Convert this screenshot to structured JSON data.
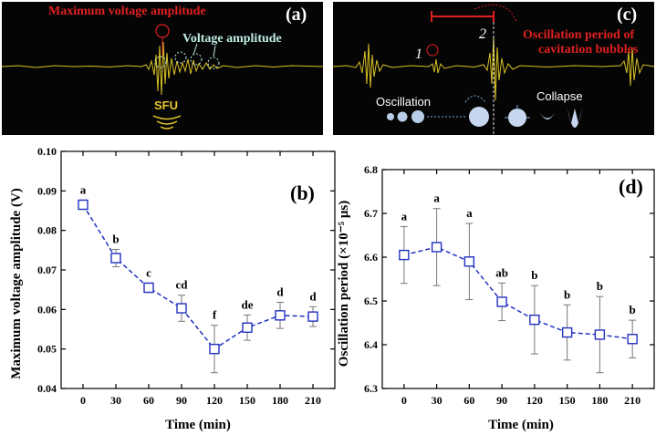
{
  "panel_a": {
    "label": "(a)",
    "annotation_max": "Maximum voltage amplitude",
    "annotation_amp": "Voltage amplitude",
    "annotation_sfu": "SFU"
  },
  "panel_c": {
    "label": "(c)",
    "marker_1": "1",
    "marker_2": "2",
    "annotation_period_line1": "Oscillation period of",
    "annotation_period_line2": "cavitation bubbles",
    "label_oscillation": "Oscillation",
    "label_collapse": "Collapse"
  },
  "chart_data": [
    {
      "panel": "(b)",
      "type": "line",
      "x": [
        0,
        30,
        60,
        90,
        120,
        150,
        180,
        210
      ],
      "xticks": [
        "0",
        "30",
        "60",
        "90",
        "120",
        "150",
        "180",
        "210"
      ],
      "values": [
        0.0865,
        0.073,
        0.0655,
        0.0603,
        0.05,
        0.0554,
        0.0585,
        0.0582
      ],
      "errors": [
        0.0012,
        0.0022,
        0.0012,
        0.0033,
        0.006,
        0.0032,
        0.0033,
        0.0025
      ],
      "significance": [
        "a",
        "b",
        "c",
        "cd",
        "f",
        "de",
        "d",
        "d"
      ],
      "xlabel": "Time (min)",
      "ylabel": "Maximum voltage amplitude (V)",
      "ylim": [
        0.04,
        0.1
      ],
      "yticks": [
        "0.04",
        "0.05",
        "0.06",
        "0.07",
        "0.08",
        "0.09",
        "0.10"
      ],
      "xlim": [
        -20,
        230
      ],
      "marker_color": "#2231c0"
    },
    {
      "panel": "(d)",
      "type": "line",
      "x": [
        0,
        30,
        60,
        90,
        120,
        150,
        180,
        210
      ],
      "xticks": [
        "0",
        "30",
        "60",
        "90",
        "120",
        "150",
        "180",
        "210"
      ],
      "values": [
        6.605,
        6.623,
        6.59,
        6.498,
        6.457,
        6.428,
        6.423,
        6.413
      ],
      "errors": [
        0.065,
        0.088,
        0.087,
        0.043,
        0.078,
        0.063,
        0.087,
        0.043
      ],
      "significance": [
        "a",
        "a",
        "a",
        "ab",
        "b",
        "b",
        "b",
        "b"
      ],
      "xlabel": "Time (min)",
      "ylabel": "Oscillation period (×10⁻⁵ μs)",
      "ylim": [
        6.3,
        6.8
      ],
      "yticks": [
        "6.3",
        "6.4",
        "6.5",
        "6.6",
        "6.7",
        "6.8"
      ],
      "xlim": [
        -20,
        230
      ],
      "marker_color": "#2231c0"
    }
  ]
}
